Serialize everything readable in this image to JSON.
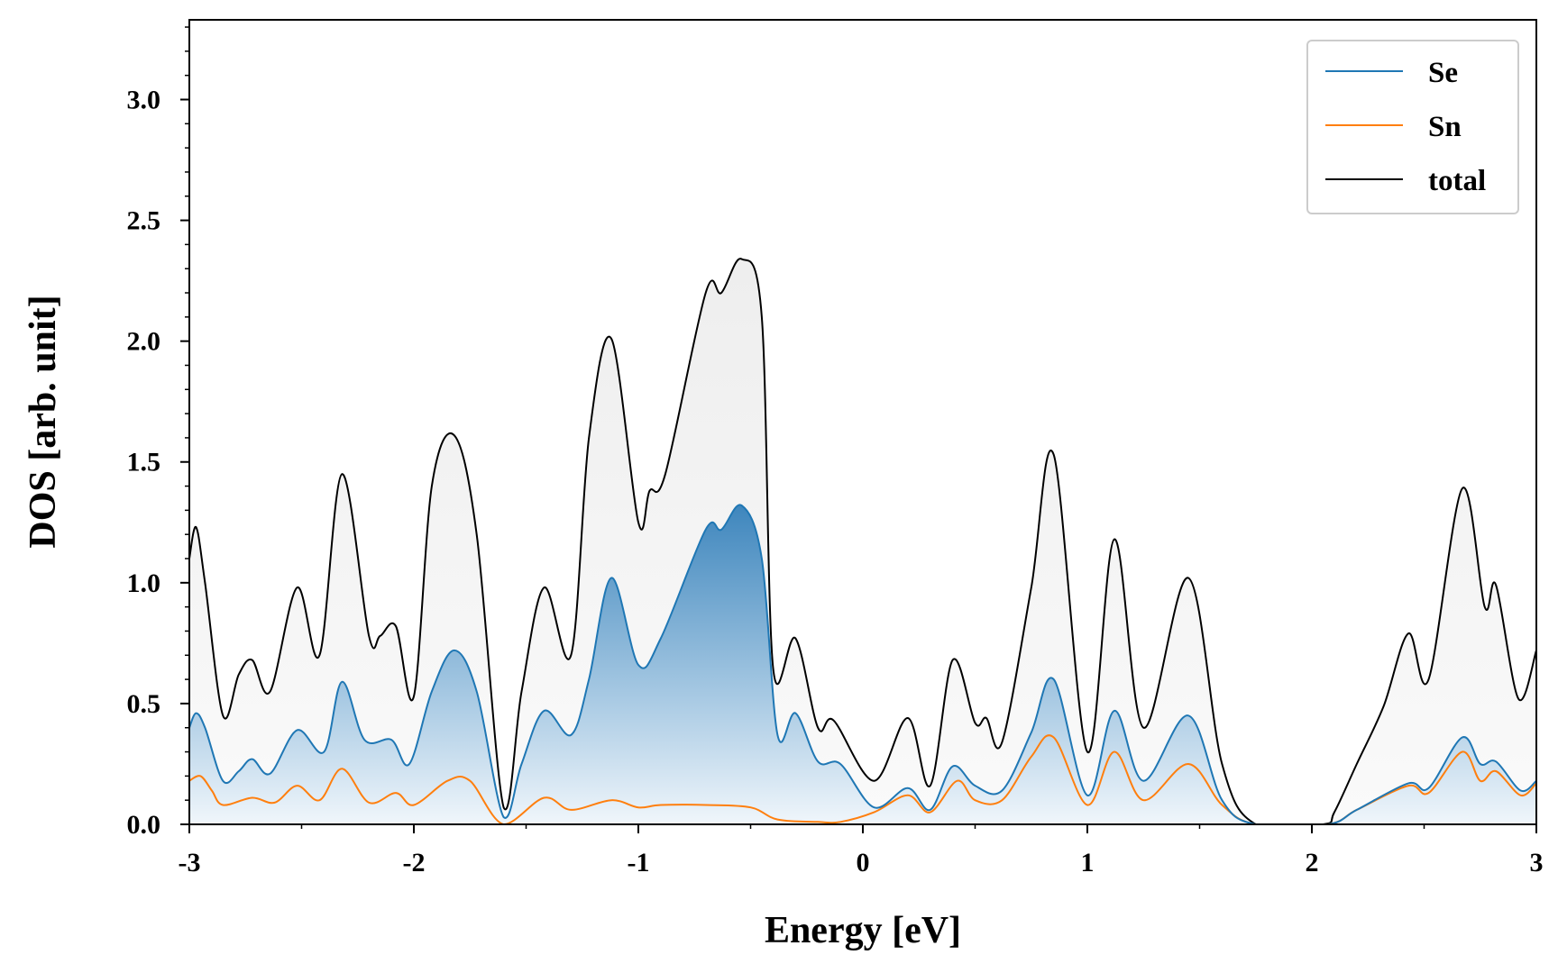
{
  "chart_data": {
    "type": "line",
    "title": "",
    "xlabel": "Energy [eV]",
    "ylabel": "DOS [arb. unit]",
    "xlim": [
      -3,
      3
    ],
    "ylim": [
      0,
      3.33
    ],
    "x_ticks": [
      -3,
      -2,
      -1,
      0,
      1,
      2,
      3
    ],
    "x_tick_labels": [
      "-3",
      "-2",
      "-1",
      "0",
      "1",
      "2",
      "3"
    ],
    "y_ticks": [
      0,
      0.5,
      1,
      1.5,
      2,
      2.5,
      3
    ],
    "y_tick_labels": [
      "0.0",
      "0.5",
      "1.0",
      "1.5",
      "2.0",
      "2.5",
      "3.0"
    ],
    "grid": false,
    "legend_position": "top-right",
    "series": [
      {
        "name": "Se",
        "color": "#1f77b4",
        "fill": "gradient",
        "points": [
          [
            -3.0,
            0.4
          ],
          [
            -2.97,
            0.46
          ],
          [
            -2.93,
            0.4
          ],
          [
            -2.85,
            0.18
          ],
          [
            -2.78,
            0.22
          ],
          [
            -2.72,
            0.27
          ],
          [
            -2.64,
            0.21
          ],
          [
            -2.52,
            0.39
          ],
          [
            -2.4,
            0.3
          ],
          [
            -2.32,
            0.59
          ],
          [
            -2.22,
            0.35
          ],
          [
            -2.1,
            0.35
          ],
          [
            -2.02,
            0.25
          ],
          [
            -1.92,
            0.55
          ],
          [
            -1.82,
            0.72
          ],
          [
            -1.72,
            0.55
          ],
          [
            -1.6,
            0.03
          ],
          [
            -1.52,
            0.25
          ],
          [
            -1.42,
            0.47
          ],
          [
            -1.3,
            0.37
          ],
          [
            -1.22,
            0.6
          ],
          [
            -1.12,
            1.02
          ],
          [
            -1.0,
            0.66
          ],
          [
            -0.9,
            0.77
          ],
          [
            -0.7,
            1.22
          ],
          [
            -0.63,
            1.22
          ],
          [
            -0.54,
            1.32
          ],
          [
            -0.45,
            1.1
          ],
          [
            -0.38,
            0.37
          ],
          [
            -0.3,
            0.46
          ],
          [
            -0.2,
            0.26
          ],
          [
            -0.1,
            0.25
          ],
          [
            0.05,
            0.07
          ],
          [
            0.2,
            0.15
          ],
          [
            0.3,
            0.06
          ],
          [
            0.4,
            0.24
          ],
          [
            0.5,
            0.16
          ],
          [
            0.62,
            0.14
          ],
          [
            0.75,
            0.38
          ],
          [
            0.85,
            0.6
          ],
          [
            1.0,
            0.12
          ],
          [
            1.12,
            0.47
          ],
          [
            1.25,
            0.18
          ],
          [
            1.45,
            0.45
          ],
          [
            1.6,
            0.1
          ],
          [
            1.75,
            0.0
          ],
          [
            2.07,
            0.0
          ],
          [
            2.2,
            0.06
          ],
          [
            2.43,
            0.17
          ],
          [
            2.52,
            0.15
          ],
          [
            2.67,
            0.36
          ],
          [
            2.75,
            0.25
          ],
          [
            2.82,
            0.26
          ],
          [
            2.93,
            0.14
          ],
          [
            3.0,
            0.18
          ]
        ]
      },
      {
        "name": "Sn",
        "color": "#ff7f0e",
        "fill": "none",
        "points": [
          [
            -3.0,
            0.18
          ],
          [
            -2.95,
            0.2
          ],
          [
            -2.9,
            0.14
          ],
          [
            -2.85,
            0.08
          ],
          [
            -2.72,
            0.11
          ],
          [
            -2.62,
            0.09
          ],
          [
            -2.52,
            0.16
          ],
          [
            -2.42,
            0.1
          ],
          [
            -2.32,
            0.23
          ],
          [
            -2.2,
            0.09
          ],
          [
            -2.08,
            0.13
          ],
          [
            -2.0,
            0.08
          ],
          [
            -1.85,
            0.18
          ],
          [
            -1.75,
            0.18
          ],
          [
            -1.6,
            0.0
          ],
          [
            -1.42,
            0.11
          ],
          [
            -1.3,
            0.06
          ],
          [
            -1.12,
            0.1
          ],
          [
            -1.0,
            0.07
          ],
          [
            -0.9,
            0.08
          ],
          [
            -0.7,
            0.08
          ],
          [
            -0.5,
            0.07
          ],
          [
            -0.38,
            0.02
          ],
          [
            -0.2,
            0.01
          ],
          [
            -0.1,
            0.01
          ],
          [
            0.05,
            0.05
          ],
          [
            0.2,
            0.12
          ],
          [
            0.3,
            0.05
          ],
          [
            0.42,
            0.18
          ],
          [
            0.5,
            0.1
          ],
          [
            0.62,
            0.1
          ],
          [
            0.75,
            0.28
          ],
          [
            0.85,
            0.36
          ],
          [
            1.0,
            0.08
          ],
          [
            1.12,
            0.3
          ],
          [
            1.25,
            0.1
          ],
          [
            1.45,
            0.25
          ],
          [
            1.6,
            0.08
          ],
          [
            1.75,
            0.0
          ],
          [
            2.07,
            0.0
          ],
          [
            2.2,
            0.06
          ],
          [
            2.43,
            0.16
          ],
          [
            2.52,
            0.13
          ],
          [
            2.67,
            0.3
          ],
          [
            2.75,
            0.18
          ],
          [
            2.82,
            0.22
          ],
          [
            2.93,
            0.12
          ],
          [
            3.0,
            0.17
          ]
        ]
      },
      {
        "name": "total",
        "color": "#000000",
        "fill": "light-gray",
        "points": [
          [
            -3.0,
            1.1
          ],
          [
            -2.97,
            1.23
          ],
          [
            -2.93,
            1.0
          ],
          [
            -2.85,
            0.45
          ],
          [
            -2.78,
            0.62
          ],
          [
            -2.72,
            0.68
          ],
          [
            -2.64,
            0.55
          ],
          [
            -2.52,
            0.98
          ],
          [
            -2.42,
            0.7
          ],
          [
            -2.32,
            1.45
          ],
          [
            -2.2,
            0.78
          ],
          [
            -2.15,
            0.78
          ],
          [
            -2.08,
            0.82
          ],
          [
            -2.0,
            0.53
          ],
          [
            -1.92,
            1.4
          ],
          [
            -1.82,
            1.61
          ],
          [
            -1.72,
            1.2
          ],
          [
            -1.6,
            0.07
          ],
          [
            -1.52,
            0.55
          ],
          [
            -1.42,
            0.98
          ],
          [
            -1.3,
            0.7
          ],
          [
            -1.22,
            1.6
          ],
          [
            -1.12,
            2.01
          ],
          [
            -1.0,
            1.25
          ],
          [
            -0.95,
            1.38
          ],
          [
            -0.88,
            1.45
          ],
          [
            -0.7,
            2.2
          ],
          [
            -0.63,
            2.2
          ],
          [
            -0.54,
            2.34
          ],
          [
            -0.45,
            2.1
          ],
          [
            -0.4,
            0.65
          ],
          [
            -0.3,
            0.77
          ],
          [
            -0.2,
            0.4
          ],
          [
            -0.13,
            0.43
          ],
          [
            0.05,
            0.18
          ],
          [
            0.2,
            0.44
          ],
          [
            0.3,
            0.16
          ],
          [
            0.4,
            0.68
          ],
          [
            0.5,
            0.42
          ],
          [
            0.55,
            0.44
          ],
          [
            0.62,
            0.34
          ],
          [
            0.75,
            0.98
          ],
          [
            0.85,
            1.53
          ],
          [
            1.0,
            0.3
          ],
          [
            1.12,
            1.18
          ],
          [
            1.25,
            0.4
          ],
          [
            1.45,
            1.02
          ],
          [
            1.6,
            0.25
          ],
          [
            1.75,
            0.0
          ],
          [
            2.05,
            0.0
          ],
          [
            2.1,
            0.05
          ],
          [
            2.2,
            0.25
          ],
          [
            2.32,
            0.49
          ],
          [
            2.43,
            0.79
          ],
          [
            2.52,
            0.6
          ],
          [
            2.67,
            1.39
          ],
          [
            2.77,
            0.9
          ],
          [
            2.82,
            0.99
          ],
          [
            2.92,
            0.52
          ],
          [
            3.0,
            0.72
          ]
        ]
      }
    ]
  }
}
